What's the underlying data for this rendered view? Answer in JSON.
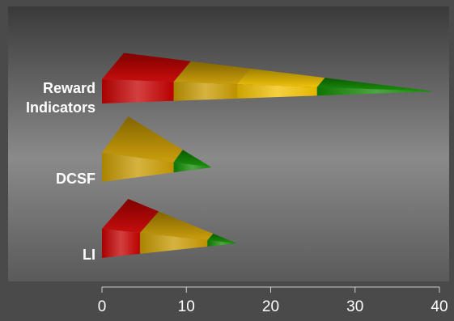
{
  "chart_data": {
    "type": "bar",
    "subtype": "stacked-horizontal-3d-cone",
    "categories": [
      "Reward Indicators",
      "DCSF",
      "LI"
    ],
    "category_label_lines": [
      [
        "Reward",
        "Indicators"
      ],
      [
        "DCSF"
      ],
      [
        "LI"
      ]
    ],
    "series": [
      {
        "color": "#c40000",
        "values": [
          8.5,
          0,
          4.5
        ]
      },
      {
        "color": "#c89a00",
        "values": [
          7.5,
          8.5,
          8.0
        ]
      },
      {
        "color": "#f0c000",
        "values": [
          9.5,
          0,
          0
        ]
      },
      {
        "color": "#0f8a00",
        "values": [
          14.0,
          4.5,
          3.5
        ]
      }
    ],
    "x_ticks": [
      "0",
      "10",
      "20",
      "30",
      "40"
    ],
    "xlim": [
      0,
      40
    ],
    "grid": false,
    "legend": "none",
    "colors": {
      "plot_background_top": "#3d3d3d",
      "plot_background_mid": "#7f7f7f",
      "axis_line": "#cfcfcf",
      "text": "#ffffff"
    }
  }
}
